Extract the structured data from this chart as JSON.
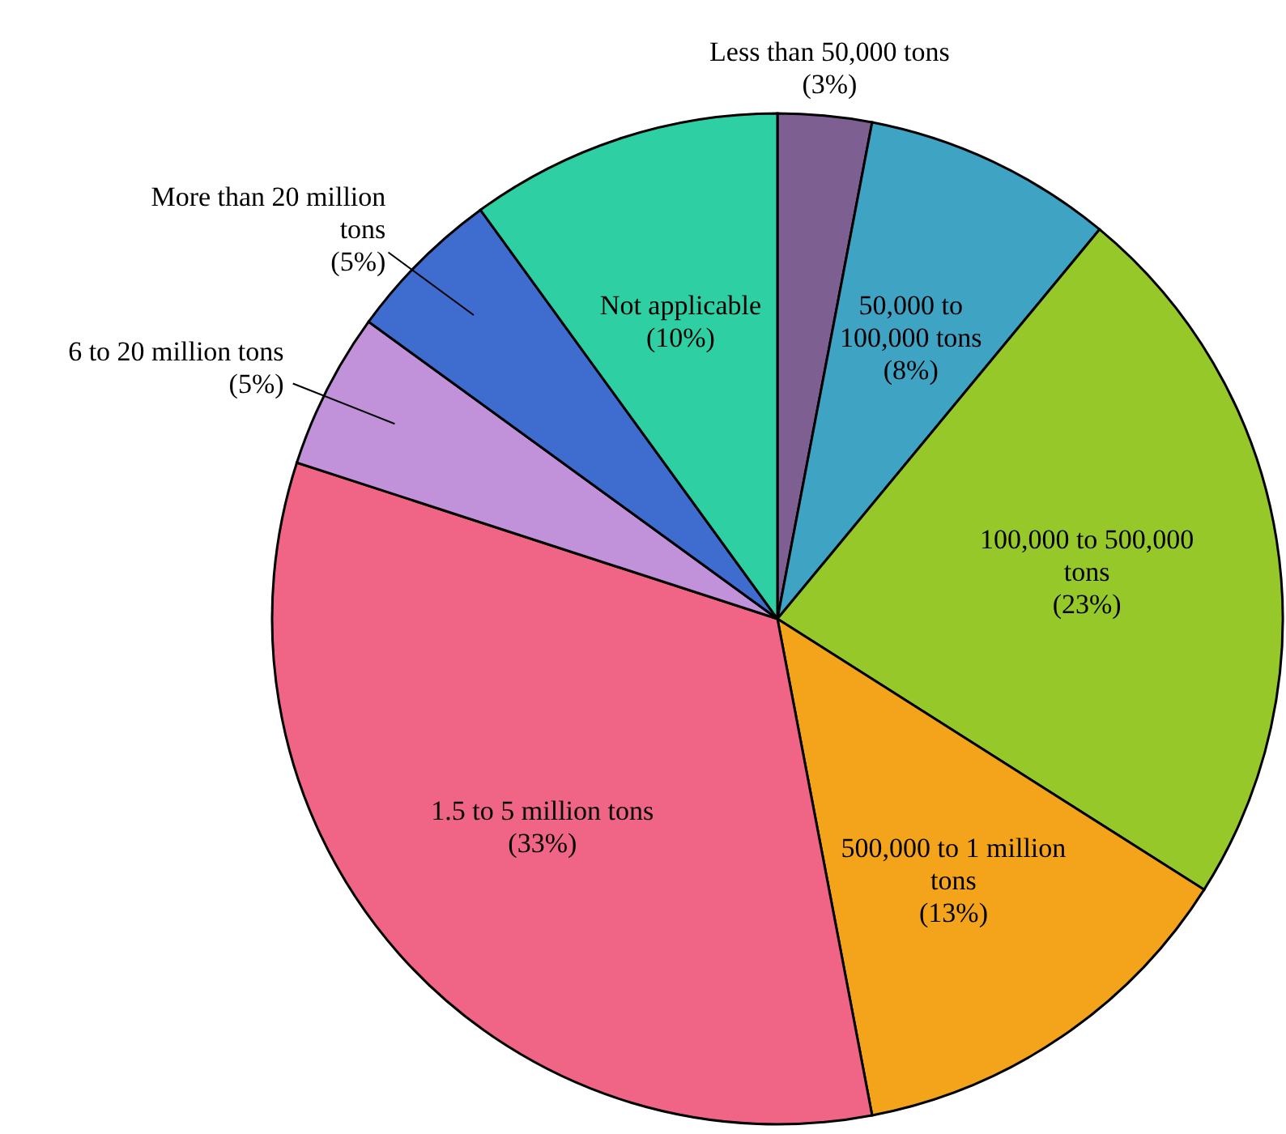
{
  "chart_data": {
    "type": "pie",
    "categories": [
      "Less than 50,000 tons",
      "50,000 to 100,000 tons",
      "100,000 to 500,000 tons",
      "500,000 to 1 million tons",
      "1.5 to 5 million tons",
      "6 to 20 million tons",
      "More than 20 million tons",
      "Not applicable"
    ],
    "values": [
      3,
      8,
      23,
      13,
      33,
      5,
      5,
      10
    ],
    "colors": [
      "#7d5f91",
      "#3fa3c4",
      "#96c82a",
      "#f4a41b",
      "#f06585",
      "#c192da",
      "#3f6ccf",
      "#2dcfa3"
    ],
    "value_labels": [
      "(3%)",
      "(8%)",
      "(23%)",
      "(13%)",
      "(33%)",
      "(5%)",
      "(5%)",
      "(10%)"
    ]
  }
}
